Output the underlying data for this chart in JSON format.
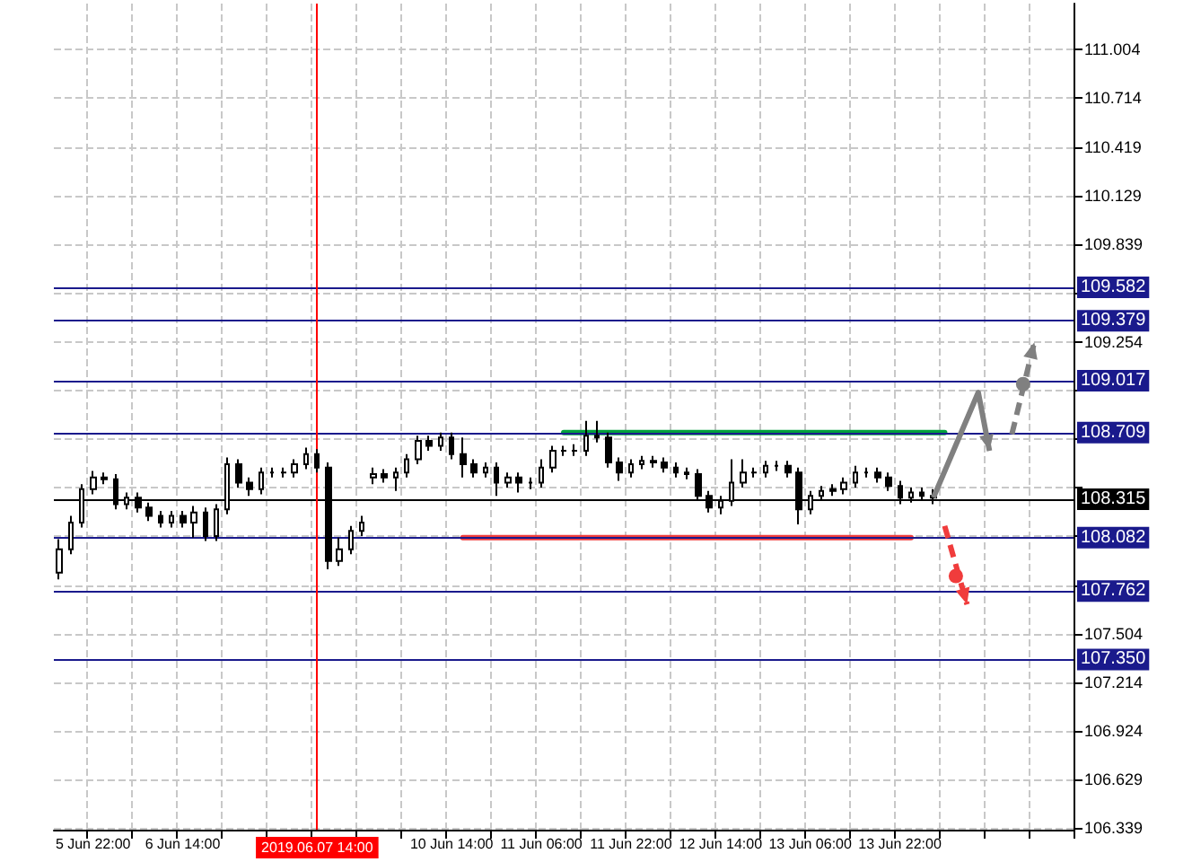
{
  "chart_data": {
    "type": "candlestick",
    "color": "#000000",
    "categories": [
      null,
      null,
      null,
      "5 Jun 22:00",
      null,
      null,
      null,
      null,
      null,
      null,
      null,
      "6 Jun 14:00",
      null,
      null,
      null,
      null,
      null,
      null,
      null,
      null,
      null,
      null,
      null,
      "2019.06.07 14:00",
      null,
      null,
      null,
      null,
      null,
      null,
      null,
      null,
      null,
      null,
      null,
      "10 Jun 14:00",
      null,
      null,
      null,
      null,
      null,
      null,
      null,
      "11 Jun 06:00",
      null,
      null,
      null,
      null,
      null,
      null,
      null,
      "11 Jun 22:00",
      null,
      null,
      null,
      null,
      null,
      null,
      null,
      "12 Jun 14:00",
      null,
      null,
      null,
      null,
      null,
      null,
      null,
      "13 Jun 06:00",
      null,
      null,
      null,
      null,
      null,
      null,
      null,
      "13 Jun 22:00",
      null,
      null,
      null,
      null,
      null,
      null,
      null,
      null,
      null,
      null,
      null,
      null,
      null,
      null,
      null
    ],
    "ohlc": [
      [
        107.87,
        108.07,
        107.83,
        108.01
      ],
      [
        108.01,
        108.21,
        107.98,
        108.17
      ],
      [
        108.17,
        108.4,
        108.14,
        108.37
      ],
      [
        108.37,
        108.48,
        108.34,
        108.44
      ],
      [
        108.44,
        108.47,
        108.4,
        108.43
      ],
      [
        108.43,
        108.46,
        108.25,
        108.28
      ],
      [
        108.28,
        108.35,
        108.25,
        108.32
      ],
      [
        108.32,
        108.35,
        108.23,
        108.26
      ],
      [
        108.26,
        108.29,
        108.18,
        108.21
      ],
      [
        108.21,
        108.24,
        108.14,
        108.17
      ],
      [
        108.17,
        108.24,
        108.14,
        108.21
      ],
      [
        108.21,
        108.24,
        108.14,
        108.17
      ],
      [
        108.17,
        108.27,
        108.08,
        108.23
      ],
      [
        108.23,
        108.26,
        108.06,
        108.09
      ],
      [
        108.09,
        108.28,
        108.06,
        108.25
      ],
      [
        108.25,
        108.56,
        108.22,
        108.52
      ],
      [
        108.52,
        108.55,
        108.38,
        108.41
      ],
      [
        108.41,
        108.44,
        108.33,
        108.37
      ],
      [
        108.37,
        108.5,
        108.34,
        108.47
      ],
      [
        108.47,
        108.5,
        108.44,
        108.47
      ],
      [
        108.47,
        108.5,
        108.44,
        108.47
      ],
      [
        108.47,
        108.55,
        108.44,
        108.52
      ],
      [
        108.52,
        108.62,
        108.49,
        108.58
      ],
      [
        108.58,
        108.61,
        108.47,
        108.5
      ],
      [
        108.5,
        108.53,
        107.89,
        107.94
      ],
      [
        107.94,
        108.08,
        107.91,
        108.01
      ],
      [
        108.01,
        108.15,
        107.98,
        108.12
      ],
      [
        108.12,
        108.21,
        108.09,
        108.17
      ],
      [
        108.44,
        108.5,
        108.4,
        108.46
      ],
      [
        108.46,
        108.49,
        108.41,
        108.44
      ],
      [
        108.44,
        108.5,
        108.36,
        108.47
      ],
      [
        108.47,
        108.58,
        108.44,
        108.55
      ],
      [
        108.55,
        108.69,
        108.52,
        108.66
      ],
      [
        108.66,
        108.69,
        108.6,
        108.63
      ],
      [
        108.63,
        108.71,
        108.6,
        108.68
      ],
      [
        108.68,
        108.71,
        108.55,
        108.58
      ],
      [
        108.58,
        108.68,
        108.44,
        108.52
      ],
      [
        108.52,
        108.55,
        108.44,
        108.47
      ],
      [
        108.47,
        108.53,
        108.44,
        108.5
      ],
      [
        108.5,
        108.53,
        108.33,
        108.41
      ],
      [
        108.41,
        108.47,
        108.38,
        108.44
      ],
      [
        108.44,
        108.47,
        108.35,
        108.41
      ],
      [
        108.41,
        108.44,
        108.37,
        108.41
      ],
      [
        108.41,
        108.55,
        108.38,
        108.5
      ],
      [
        108.5,
        108.63,
        108.47,
        108.6
      ],
      [
        108.6,
        108.63,
        108.57,
        108.6
      ],
      [
        108.6,
        108.64,
        108.57,
        108.6
      ],
      [
        108.6,
        108.78,
        108.57,
        108.69
      ],
      [
        108.69,
        108.78,
        108.65,
        108.68
      ],
      [
        108.68,
        108.71,
        108.5,
        108.53
      ],
      [
        108.53,
        108.56,
        108.42,
        108.47
      ],
      [
        108.47,
        108.55,
        108.44,
        108.52
      ],
      [
        108.52,
        108.57,
        108.49,
        108.54
      ],
      [
        108.54,
        108.57,
        108.5,
        108.53
      ],
      [
        108.53,
        108.56,
        108.47,
        108.5
      ],
      [
        108.5,
        108.53,
        108.44,
        108.47
      ],
      [
        108.47,
        108.5,
        108.43,
        108.46
      ],
      [
        108.46,
        108.49,
        108.3,
        108.33
      ],
      [
        108.33,
        108.36,
        108.23,
        108.26
      ],
      [
        108.26,
        108.33,
        108.22,
        108.3
      ],
      [
        108.3,
        108.55,
        108.27,
        108.41
      ],
      [
        108.41,
        108.55,
        108.38,
        108.47
      ],
      [
        108.47,
        108.5,
        108.44,
        108.47
      ],
      [
        108.47,
        108.54,
        108.44,
        108.51
      ],
      [
        108.51,
        108.54,
        108.48,
        108.51
      ],
      [
        108.51,
        108.54,
        108.44,
        108.47
      ],
      [
        108.47,
        108.5,
        108.16,
        108.25
      ],
      [
        108.25,
        108.36,
        108.22,
        108.33
      ],
      [
        108.33,
        108.39,
        108.3,
        108.36
      ],
      [
        108.36,
        108.4,
        108.33,
        108.37
      ],
      [
        108.37,
        108.44,
        108.34,
        108.41
      ],
      [
        108.41,
        108.51,
        108.38,
        108.47
      ],
      [
        108.47,
        108.5,
        108.44,
        108.47
      ],
      [
        108.47,
        108.5,
        108.41,
        108.44
      ],
      [
        108.44,
        108.47,
        108.36,
        108.39
      ],
      [
        108.39,
        108.42,
        108.28,
        108.32
      ],
      [
        108.32,
        108.38,
        108.29,
        108.35
      ],
      [
        108.35,
        108.38,
        108.3,
        108.33
      ],
      [
        108.33,
        108.37,
        108.28,
        108.32
      ],
      null,
      null,
      null,
      null,
      null,
      null,
      null,
      null,
      null,
      null,
      null,
      null
    ],
    "series": [
      {
        "type": "line",
        "color": "#00a03c",
        "values": [
          null,
          null,
          null,
          null,
          null,
          null,
          null,
          null,
          null,
          null,
          null,
          null,
          null,
          null,
          null,
          null,
          null,
          null,
          null,
          null,
          null,
          null,
          null,
          null,
          null,
          null,
          null,
          null,
          null,
          null,
          null,
          null,
          null,
          null,
          null,
          null,
          null,
          null,
          null,
          null,
          null,
          null,
          null,
          null,
          null,
          108.71,
          108.71,
          108.71,
          108.71,
          108.71,
          108.71,
          108.71,
          108.71,
          108.71,
          108.71,
          108.71,
          108.71,
          108.71,
          108.71,
          108.71,
          108.71,
          108.71,
          108.71,
          108.71,
          108.71,
          108.71,
          108.71,
          108.71,
          108.71,
          108.71,
          108.71,
          108.71,
          108.71,
          108.71,
          108.71,
          108.71,
          108.71,
          108.71,
          108.71,
          108.71,
          null,
          null,
          null,
          null,
          null,
          null,
          null,
          null,
          null,
          null,
          null
        ]
      },
      {
        "type": "line",
        "color": "#f03c3c",
        "values": [
          null,
          null,
          null,
          null,
          null,
          null,
          null,
          null,
          null,
          null,
          null,
          null,
          null,
          null,
          null,
          null,
          null,
          null,
          null,
          null,
          null,
          null,
          null,
          null,
          null,
          null,
          null,
          null,
          null,
          null,
          null,
          null,
          null,
          null,
          null,
          null,
          108.08,
          108.08,
          108.08,
          108.08,
          108.08,
          108.08,
          108.08,
          108.08,
          108.08,
          108.08,
          108.08,
          108.08,
          108.08,
          108.08,
          108.08,
          108.08,
          108.08,
          108.08,
          108.08,
          108.08,
          108.08,
          108.08,
          108.08,
          108.08,
          108.08,
          108.08,
          108.08,
          108.08,
          108.08,
          108.08,
          108.08,
          108.08,
          108.08,
          108.08,
          108.08,
          108.08,
          108.08,
          108.08,
          108.08,
          108.08,
          108.08,
          null,
          null,
          null,
          null,
          null,
          null,
          null,
          null,
          null,
          null,
          null,
          null,
          null,
          null
        ]
      }
    ],
    "marker": "none",
    "line_style": "solid",
    "ylim": [
      106.33,
      111.28
    ],
    "yticks": [
      106.339,
      106.629,
      106.924,
      107.214,
      107.504,
      {
        "value": 107.794,
        "label": null
      },
      {
        "value": 108.089,
        "label": null
      },
      {
        "value": 108.379,
        "label": null
      },
      {
        "value": 108.674,
        "label": null
      },
      {
        "value": 108.964,
        "label": null
      },
      109.254,
      {
        "value": 109.544,
        "label": null
      },
      109.839,
      110.129,
      110.419,
      110.714,
      111.004
    ],
    "grid": true,
    "ref_lines": [
      {
        "axis": "y",
        "value": 109.582,
        "label": "109.582",
        "color": "#1a1a8c",
        "line_style": "solid"
      },
      {
        "axis": "y",
        "value": 109.379,
        "label": "109.379",
        "color": "#1a1a8c",
        "line_style": "solid"
      },
      {
        "axis": "y",
        "value": 109.017,
        "label": "109.017",
        "color": "#1a1a8c",
        "line_style": "solid"
      },
      {
        "axis": "y",
        "value": 108.709,
        "label": "108.709",
        "color": "#1a1a8c",
        "line_style": "solid"
      },
      {
        "axis": "y",
        "value": 108.315,
        "label": "108.315",
        "color": "#000000",
        "line_style": "solid"
      },
      {
        "axis": "y",
        "value": 108.082,
        "label": "108.082",
        "color": "#1a1a8c",
        "line_style": "solid"
      },
      {
        "axis": "y",
        "value": 107.762,
        "label": "107.762",
        "color": "#1a1a8c",
        "line_style": "solid"
      },
      {
        "axis": "y",
        "value": 107.35,
        "label": "107.350",
        "color": "#1a1a8c",
        "line_style": "solid"
      },
      {
        "axis": "x",
        "value": "2019.06.07 14:00",
        "color": "#ff0000",
        "line_style": "solid"
      }
    ]
  }
}
